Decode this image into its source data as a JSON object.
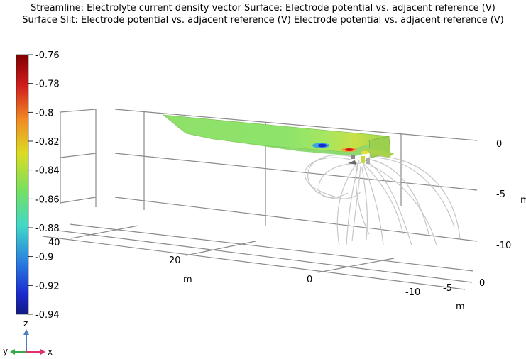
{
  "titles": {
    "line1": "Streamline: Electrolyte current density vector  Surface: Electrode potential vs. adjacent reference (V)",
    "line2": "Surface Slit: Electrode potential vs. adjacent reference (V) Electrode potential vs. adjacent reference (V)"
  },
  "chart_data": {
    "type": "3d-surface-streamline",
    "series": [
      {
        "name": "Streamline: Electrolyte current density vector"
      },
      {
        "name": "Surface: Electrode potential vs. adjacent reference (V)"
      },
      {
        "name": "Surface Slit: Electrode potential vs. adjacent reference (V)"
      }
    ],
    "colorbar": {
      "min": -0.94,
      "max": -0.76,
      "ticks": [
        "-0.76",
        "-0.78",
        "-0.8",
        "-0.82",
        "-0.84",
        "-0.86",
        "-0.88",
        "-0.9",
        "-0.92",
        "-0.94"
      ],
      "colormap": "rainbow"
    },
    "axes": {
      "x": {
        "ticks": [
          "0",
          "-5",
          "-10"
        ],
        "unit": "m"
      },
      "y": {
        "ticks": [
          "40",
          "20",
          "0"
        ],
        "unit": "m"
      },
      "z": {
        "ticks": [
          "0",
          "-5",
          "-10"
        ],
        "unit": "m"
      }
    },
    "surface_potential_range": [
      -0.94,
      -0.83
    ]
  },
  "triad": {
    "z": "z",
    "y": "y",
    "x": "x",
    "colors": {
      "z": "#4a7fc1",
      "y": "#3aa845",
      "x": "#e0306a"
    }
  }
}
